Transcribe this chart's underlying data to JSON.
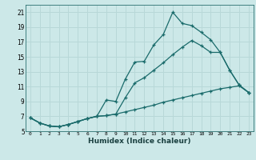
{
  "xlabel": "Humidex (Indice chaleur)",
  "background_color": "#cce8e8",
  "grid_color": "#b8d8d8",
  "line_color": "#1a6b6b",
  "xlim": [
    -0.5,
    23.5
  ],
  "ylim": [
    5,
    22
  ],
  "xticks": [
    0,
    1,
    2,
    3,
    4,
    5,
    6,
    7,
    8,
    9,
    10,
    11,
    12,
    13,
    14,
    15,
    16,
    17,
    18,
    19,
    20,
    21,
    22,
    23
  ],
  "yticks": [
    5,
    7,
    9,
    11,
    13,
    15,
    17,
    19,
    21
  ],
  "line1_x": [
    0,
    1,
    2,
    3,
    4,
    5,
    6,
    7,
    8,
    9,
    10,
    11,
    12,
    13,
    14,
    15,
    16,
    17,
    18,
    19,
    20,
    21,
    22,
    23
  ],
  "line1_y": [
    6.8,
    6.1,
    5.7,
    5.6,
    5.9,
    6.3,
    6.7,
    7.0,
    9.2,
    9.0,
    12.0,
    14.3,
    14.4,
    16.6,
    18.0,
    21.0,
    19.5,
    19.2,
    18.3,
    17.3,
    15.6,
    13.2,
    11.2,
    10.2
  ],
  "line2_x": [
    0,
    1,
    2,
    3,
    4,
    5,
    6,
    7,
    8,
    9,
    10,
    11,
    12,
    13,
    14,
    15,
    16,
    17,
    18,
    19,
    20,
    21,
    22,
    23
  ],
  "line2_y": [
    6.8,
    6.1,
    5.7,
    5.6,
    5.9,
    6.3,
    6.7,
    7.0,
    7.1,
    7.3,
    9.5,
    11.5,
    12.2,
    13.2,
    14.2,
    15.3,
    16.3,
    17.2,
    16.5,
    15.6,
    15.6,
    13.2,
    11.2,
    10.2
  ],
  "line3_x": [
    0,
    1,
    2,
    3,
    4,
    5,
    6,
    7,
    8,
    9,
    10,
    11,
    12,
    13,
    14,
    15,
    16,
    17,
    18,
    19,
    20,
    21,
    22,
    23
  ],
  "line3_y": [
    6.8,
    6.1,
    5.7,
    5.6,
    5.9,
    6.3,
    6.7,
    7.0,
    7.1,
    7.3,
    7.6,
    7.9,
    8.2,
    8.5,
    8.9,
    9.2,
    9.5,
    9.8,
    10.1,
    10.4,
    10.7,
    10.9,
    11.1,
    10.2
  ],
  "marker": "+"
}
